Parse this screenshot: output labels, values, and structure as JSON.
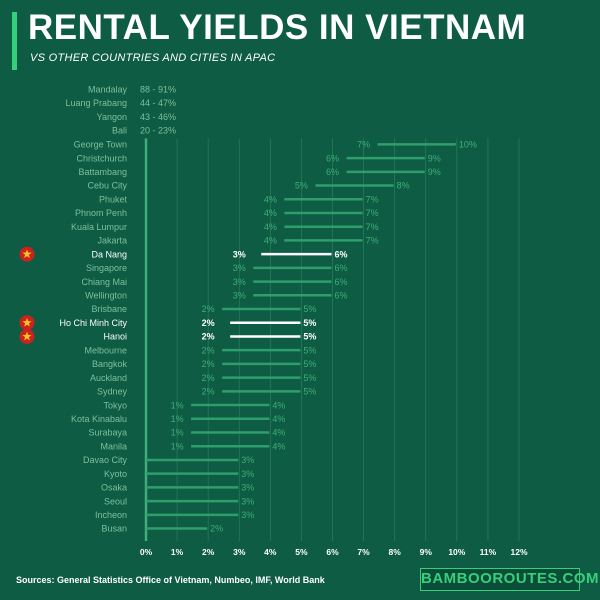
{
  "header": {
    "title": "RENTAL YIELDS IN VIETNAM",
    "subtitle": "VS OTHER COUNTRIES AND CITIES IN APAC"
  },
  "footer": {
    "sources": "Sources: General Statistics Office of Vietnam, Numbeo, IMF, World Bank",
    "brand": "BAMBOOROUTES.COM"
  },
  "colors": {
    "background": "#0d5c43",
    "bar": "#2e9e6c",
    "bar_label": "#3fae7a",
    "highlight": "#ffffff",
    "category_text": "#7fbf9f",
    "star_circle": "#c8231f",
    "star": "#f6c21b",
    "brand": "#37d07a"
  },
  "chart_data": {
    "type": "range-bar",
    "x_axis": {
      "ticks": [
        "0%",
        "1%",
        "2%",
        "3%",
        "4%",
        "5%",
        "6%",
        "7%",
        "8%",
        "9%",
        "10%",
        "11%",
        "12%"
      ],
      "min": 0,
      "max": 12
    },
    "grid": true,
    "legend": "none",
    "text_only_rows": [
      {
        "category": "Mandalay",
        "value": "88 - 91%"
      },
      {
        "category": "Luang Prabang",
        "value": "44 - 47%"
      },
      {
        "category": "Yangon",
        "value": "43 - 46%"
      },
      {
        "category": "Bali",
        "value": "20 - 23%"
      }
    ],
    "series": [
      {
        "category": "George Town",
        "low": 7,
        "high": 10,
        "low_label": "7%",
        "high_label": "10%",
        "highlight": false
      },
      {
        "category": "Christchurch",
        "low": 6,
        "high": 9,
        "low_label": "6%",
        "high_label": "9%",
        "highlight": false
      },
      {
        "category": "Battambang",
        "low": 6,
        "high": 9,
        "low_label": "6%",
        "high_label": "9%",
        "highlight": false
      },
      {
        "category": "Cebu City",
        "low": 5,
        "high": 8,
        "low_label": "5%",
        "high_label": "8%",
        "highlight": false
      },
      {
        "category": "Phuket",
        "low": 4,
        "high": 7,
        "low_label": "4%",
        "high_label": "7%",
        "highlight": false
      },
      {
        "category": "Phnom Penh",
        "low": 4,
        "high": 7,
        "low_label": "4%",
        "high_label": "7%",
        "highlight": false
      },
      {
        "category": "Kuala Lumpur",
        "low": 4,
        "high": 7,
        "low_label": "4%",
        "high_label": "7%",
        "highlight": false
      },
      {
        "category": "Jakarta",
        "low": 4,
        "high": 7,
        "low_label": "4%",
        "high_label": "7%",
        "highlight": false
      },
      {
        "category": "Da Nang",
        "low": 3,
        "high": 6,
        "low_label": "3%",
        "high_label": "6%",
        "highlight": true
      },
      {
        "category": "Singapore",
        "low": 3,
        "high": 6,
        "low_label": "3%",
        "high_label": "6%",
        "highlight": false
      },
      {
        "category": "Chiang Mai",
        "low": 3,
        "high": 6,
        "low_label": "3%",
        "high_label": "6%",
        "highlight": false
      },
      {
        "category": "Wellington",
        "low": 3,
        "high": 6,
        "low_label": "3%",
        "high_label": "6%",
        "highlight": false
      },
      {
        "category": "Brisbane",
        "low": 2,
        "high": 5,
        "low_label": "2%",
        "high_label": "5%",
        "highlight": false
      },
      {
        "category": "Ho Chi Minh City",
        "low": 2,
        "high": 5,
        "low_label": "2%",
        "high_label": "5%",
        "highlight": true
      },
      {
        "category": "Hanoi",
        "low": 2,
        "high": 5,
        "low_label": "2%",
        "high_label": "5%",
        "highlight": true
      },
      {
        "category": "Melbourne",
        "low": 2,
        "high": 5,
        "low_label": "2%",
        "high_label": "5%",
        "highlight": false
      },
      {
        "category": "Bangkok",
        "low": 2,
        "high": 5,
        "low_label": "2%",
        "high_label": "5%",
        "highlight": false
      },
      {
        "category": "Auckland",
        "low": 2,
        "high": 5,
        "low_label": "2%",
        "high_label": "5%",
        "highlight": false
      },
      {
        "category": "Sydney",
        "low": 2,
        "high": 5,
        "low_label": "2%",
        "high_label": "5%",
        "highlight": false
      },
      {
        "category": "Tokyo",
        "low": 1,
        "high": 4,
        "low_label": "1%",
        "high_label": "4%",
        "highlight": false
      },
      {
        "category": "Kota Kinabalu",
        "low": 1,
        "high": 4,
        "low_label": "1%",
        "high_label": "4%",
        "highlight": false
      },
      {
        "category": "Surabaya",
        "low": 1,
        "high": 4,
        "low_label": "1%",
        "high_label": "4%",
        "highlight": false
      },
      {
        "category": "Manila",
        "low": 1,
        "high": 4,
        "low_label": "1%",
        "high_label": "4%",
        "highlight": false
      },
      {
        "category": "Davao City",
        "low": 0,
        "high": 3,
        "low_label": "",
        "high_label": "3%",
        "highlight": false
      },
      {
        "category": "Kyoto",
        "low": 0,
        "high": 3,
        "low_label": "",
        "high_label": "3%",
        "highlight": false
      },
      {
        "category": "Osaka",
        "low": 0,
        "high": 3,
        "low_label": "",
        "high_label": "3%",
        "highlight": false
      },
      {
        "category": "Seoul",
        "low": 0,
        "high": 3,
        "low_label": "",
        "high_label": "3%",
        "highlight": false
      },
      {
        "category": "Incheon",
        "low": 0,
        "high": 3,
        "low_label": "",
        "high_label": "3%",
        "highlight": false
      },
      {
        "category": "Busan",
        "low": 0,
        "high": 2,
        "low_label": "",
        "high_label": "2%",
        "highlight": false
      }
    ]
  }
}
